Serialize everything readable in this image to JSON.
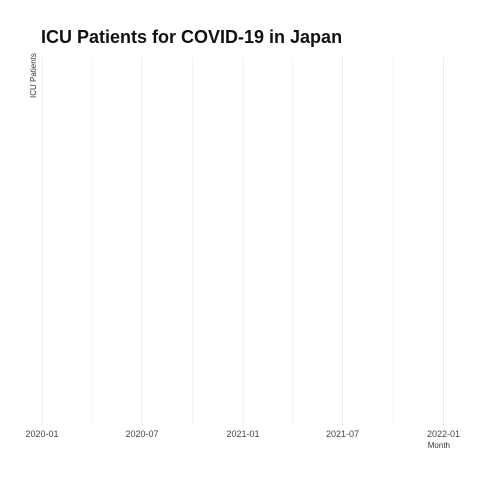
{
  "chart_data": {
    "type": "line",
    "title": "ICU Patients for COVID-19 in Japan",
    "xlabel": "Month",
    "ylabel": "ICU Patients",
    "x_axis_type": "date",
    "xlim": [
      "2019-12-01",
      "2022-01-31"
    ],
    "major_ticks": [
      {
        "date": "2020-01-01",
        "label": "2020-01"
      },
      {
        "date": "2020-07-01",
        "label": "2020-07"
      },
      {
        "date": "2021-01-01",
        "label": "2021-01"
      },
      {
        "date": "2021-07-01",
        "label": "2021-07"
      },
      {
        "date": "2022-01-01",
        "label": "2022-01"
      }
    ],
    "minor_ticks": [
      "2020-04-01",
      "2020-10-01",
      "2021-04-01",
      "2021-10-01"
    ],
    "y_ticks": [],
    "grid": true,
    "legend": "none",
    "series": []
  }
}
